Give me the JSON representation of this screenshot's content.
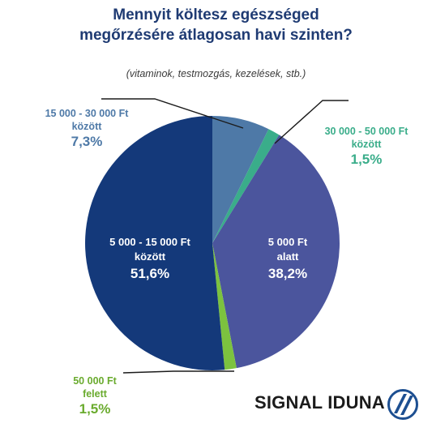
{
  "title_line1": "Mennyit költesz egészséged",
  "title_line2": "megőrzésére átlagosan havi szinten?",
  "subtitle": "(vitaminok, testmozgás, kezelések, stb.)",
  "brand": "SIGNAL IDUNA",
  "logo_icon": "signal-iduna-logo-icon",
  "chart_data": {
    "type": "pie",
    "title": "Mennyit költesz egészséged megőrzésére átlagosan havi szinten?",
    "subtitle": "(vitaminok, testmozgás, kezelések, stb.)",
    "start_angle_deg": 0,
    "direction": "clockwise",
    "slices": [
      {
        "label_line1": "15 000 - 30 000 Ft",
        "label_line2": "között",
        "value": 7.3,
        "value_label": "7,3%",
        "color": "#4e79a7",
        "label_color": "#4e79a7"
      },
      {
        "label_line1": "30 000 - 50 000 Ft",
        "label_line2": "között",
        "value": 1.5,
        "value_label": "1,5%",
        "color": "#3aad8a",
        "label_color": "#3aad8a"
      },
      {
        "label_line1": "5 000 Ft",
        "label_line2": "alatt",
        "value": 38.2,
        "value_label": "38,2%",
        "color": "#4b559d",
        "label_color": "#ffffff"
      },
      {
        "label_line1": "50 000 Ft",
        "label_line2": "felett",
        "value": 1.5,
        "value_label": "1,5%",
        "color": "#7cc23f",
        "label_color": "#6aab2e"
      },
      {
        "label_line1": "5 000 - 15 000 Ft",
        "label_line2": "között",
        "value": 51.6,
        "value_label": "51,6%",
        "color": "#14397a",
        "label_color": "#ffffff"
      }
    ]
  }
}
